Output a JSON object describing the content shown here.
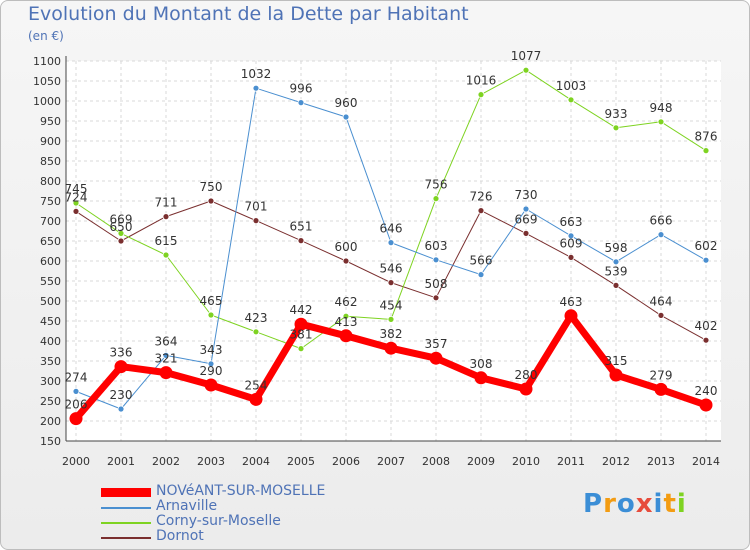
{
  "chart_data": {
    "type": "line",
    "title": "Evolution du Montant de la Dette par Habitant",
    "subtitle": "(en €)",
    "xlabel": "",
    "ylabel": "",
    "x": [
      "2000",
      "2001",
      "2002",
      "2003",
      "2004",
      "2005",
      "2006",
      "2007",
      "2008",
      "2009",
      "2010",
      "2011",
      "2012",
      "2013",
      "2014"
    ],
    "ylim": [
      150,
      1100
    ],
    "yticks": [
      150,
      200,
      250,
      300,
      350,
      400,
      450,
      500,
      550,
      600,
      650,
      700,
      750,
      800,
      850,
      900,
      950,
      1000,
      1050,
      1100
    ],
    "grid": true,
    "legend_position": "bottom-left",
    "series": [
      {
        "name": "NOVéANT-SUR-MOSELLE",
        "color": "#ff0000",
        "values": [
          206,
          336,
          321,
          290,
          254,
          442,
          413,
          382,
          357,
          308,
          280,
          463,
          315,
          279,
          240
        ]
      },
      {
        "name": "Arnaville",
        "color": "#4a8fd0",
        "values": [
          274,
          230,
          364,
          343,
          1032,
          996,
          960,
          646,
          603,
          566,
          730,
          663,
          598,
          666,
          602
        ]
      },
      {
        "name": "Corny-sur-Moselle",
        "color": "#7ed321",
        "values": [
          745,
          669,
          615,
          465,
          423,
          381,
          462,
          454,
          756,
          1016,
          1077,
          1003,
          933,
          948,
          876
        ]
      },
      {
        "name": "Dornot",
        "color": "#7a2f2f",
        "values": [
          724,
          650,
          711,
          750,
          701,
          651,
          600,
          546,
          508,
          726,
          669,
          609,
          539,
          464,
          402
        ]
      }
    ]
  },
  "logo": {
    "letters": [
      "P",
      "r",
      "o",
      "x",
      "i",
      "t",
      "i"
    ],
    "colors": [
      "#3b8ed6",
      "#f39c12",
      "#3b8ed6",
      "#e74c3c",
      "#3b8ed6",
      "#f39c12",
      "#7ed321"
    ]
  }
}
